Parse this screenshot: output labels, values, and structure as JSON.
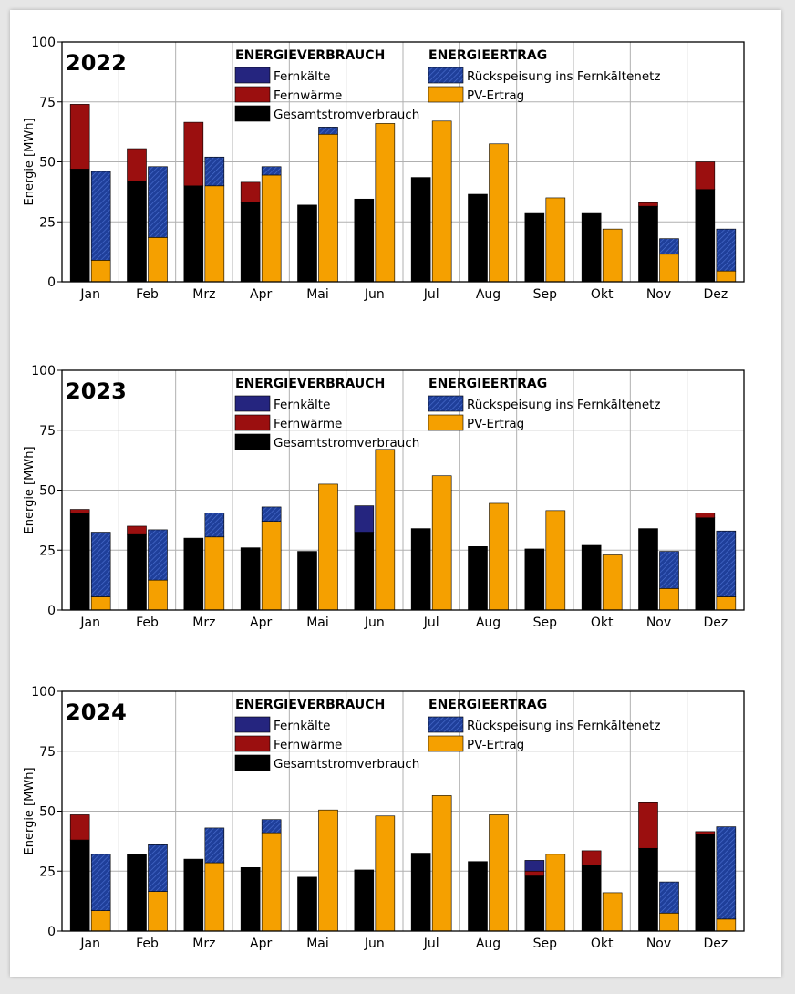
{
  "colors": {
    "fernkaelte": "#25257f",
    "fernwaerme": "#9b0f0f",
    "gesamtstrom": "#000000",
    "rueckspeisung": "#1f3f9a",
    "pv": "#f5a000",
    "grid": "#b0b0b0"
  },
  "legend": {
    "verbrauch_title": "ENERGIEVERBRAUCH",
    "ertrag_title": "ENERGIEERTRAG",
    "fernkaelte": "Fernkälte",
    "fernwaerme": "Fernwärme",
    "gesamtstrom": "Gesamtstromverbrauch",
    "rueckspeisung": "Rückspeisung ins Fernkältenetz",
    "pv": "PV-Ertrag"
  },
  "chart_data": [
    {
      "type": "bar",
      "title": "2022",
      "ylabel": "Energie [MWh]",
      "ylim": [
        0,
        100
      ],
      "yticks": [
        0,
        25,
        50,
        75,
        100
      ],
      "categories": [
        "Jan",
        "Feb",
        "Mrz",
        "Apr",
        "Mai",
        "Jun",
        "Jul",
        "Aug",
        "Sep",
        "Okt",
        "Nov",
        "Dez"
      ],
      "stacks": {
        "verbrauch": [
          {
            "name": "Gesamtstromverbrauch",
            "values": [
              47,
              42,
              40,
              33,
              32,
              34.5,
              43.5,
              36.5,
              28.5,
              28.5,
              31.5,
              38.5
            ]
          },
          {
            "name": "Fernwärme",
            "values": [
              27,
              13.5,
              26.5,
              8.5,
              0,
              0,
              0,
              0,
              0,
              0,
              1.5,
              11.5
            ]
          },
          {
            "name": "Fernkälte",
            "values": [
              0,
              0,
              0,
              0,
              0,
              0,
              0,
              0,
              0,
              0,
              0,
              0
            ]
          }
        ],
        "ertrag": [
          {
            "name": "PV-Ertrag",
            "values": [
              9,
              18.5,
              40,
              44.5,
              61.5,
              66,
              67,
              57.5,
              35,
              22,
              11.5,
              4.5
            ]
          },
          {
            "name": "Rückspeisung ins Fernkältenetz",
            "values": [
              37,
              29.5,
              12,
              3.5,
              3,
              0,
              0,
              0,
              0,
              0,
              6.5,
              17.5
            ]
          }
        ]
      }
    },
    {
      "type": "bar",
      "title": "2023",
      "ylabel": "Energie [MWh]",
      "ylim": [
        0,
        100
      ],
      "yticks": [
        0,
        25,
        50,
        75,
        100
      ],
      "categories": [
        "Jan",
        "Feb",
        "Mrz",
        "Apr",
        "Mai",
        "Jun",
        "Jul",
        "Aug",
        "Sep",
        "Okt",
        "Nov",
        "Dez"
      ],
      "stacks": {
        "verbrauch": [
          {
            "name": "Gesamtstromverbrauch",
            "values": [
              40.5,
              31.5,
              30,
              26,
              24.5,
              32.5,
              34,
              26.5,
              25.5,
              27,
              34,
              38.5
            ]
          },
          {
            "name": "Fernwärme",
            "values": [
              1.5,
              3.5,
              0,
              0,
              0,
              0,
              0,
              0,
              0,
              0,
              0,
              2
            ]
          },
          {
            "name": "Fernkälte",
            "values": [
              0,
              0,
              0,
              0,
              0,
              11,
              0,
              0,
              0,
              0,
              0,
              0
            ]
          }
        ],
        "ertrag": [
          {
            "name": "PV-Ertrag",
            "values": [
              5.5,
              12.5,
              30.5,
              37,
              52.5,
              67,
              56,
              44.5,
              41.5,
              23,
              9,
              5.5
            ]
          },
          {
            "name": "Rückspeisung ins Fernkältenetz",
            "values": [
              27,
              21,
              10,
              6,
              0,
              0,
              0,
              0,
              0,
              0,
              15.5,
              27.5
            ]
          }
        ]
      }
    },
    {
      "type": "bar",
      "title": "2024",
      "ylabel": "Energie [MWh]",
      "ylim": [
        0,
        100
      ],
      "yticks": [
        0,
        25,
        50,
        75,
        100
      ],
      "categories": [
        "Jan",
        "Feb",
        "Mrz",
        "Apr",
        "Mai",
        "Jun",
        "Jul",
        "Aug",
        "Sep",
        "Okt",
        "Nov",
        "Dez"
      ],
      "stacks": {
        "verbrauch": [
          {
            "name": "Gesamtstromverbrauch",
            "values": [
              38,
              32,
              30,
              26.5,
              22.5,
              25.5,
              32.5,
              29,
              23,
              27.5,
              34.5,
              40.5
            ]
          },
          {
            "name": "Fernwärme",
            "values": [
              10.5,
              0,
              0,
              0,
              0,
              0,
              0,
              0,
              2,
              6,
              19,
              1
            ]
          },
          {
            "name": "Fernkälte",
            "values": [
              0,
              0,
              0,
              0,
              0,
              0,
              0,
              0,
              4.5,
              0,
              0,
              0
            ]
          }
        ],
        "ertrag": [
          {
            "name": "PV-Ertrag",
            "values": [
              8.5,
              16.5,
              28.5,
              41,
              50.5,
              48,
              56.5,
              48.5,
              32,
              16,
              7.5,
              5
            ]
          },
          {
            "name": "Rückspeisung ins Fernkältenetz",
            "values": [
              23.5,
              19.5,
              14.5,
              5.5,
              0,
              0,
              0,
              0,
              0,
              0,
              13,
              38.5
            ]
          }
        ]
      }
    }
  ]
}
